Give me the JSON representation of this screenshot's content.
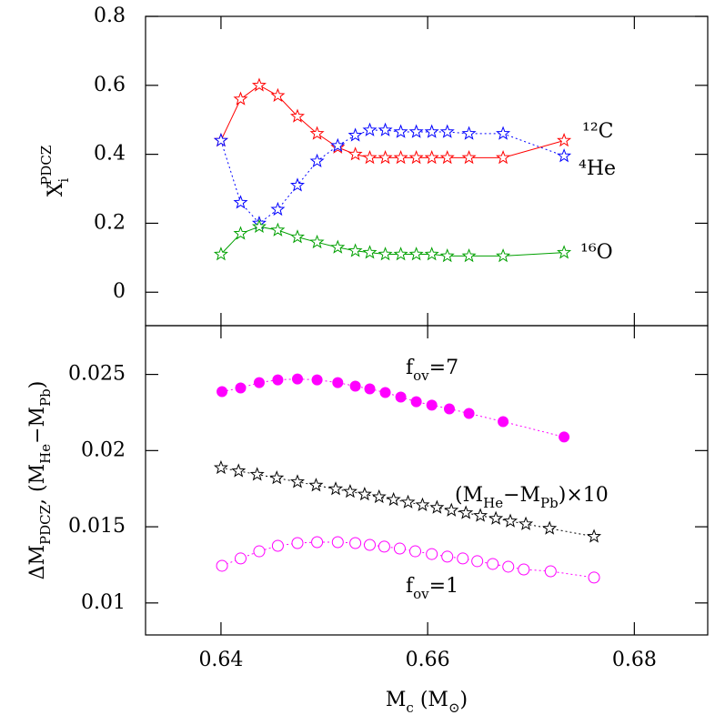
{
  "chart_data": [
    {
      "type": "line",
      "ylabel": [
        {
          "text": "X"
        },
        {
          "sub": "i"
        },
        {
          "sup": "PDCZ"
        }
      ],
      "xlim": [
        0.6327,
        0.6871
      ],
      "ylim": [
        -0.097,
        0.8
      ],
      "yticks": [
        0,
        0.2,
        0.4,
        0.6,
        0.8
      ],
      "series": [
        {
          "name": "¹²C",
          "color": "#ff0000",
          "marker": "star",
          "dash": false,
          "x": [
            0.64,
            0.6419,
            0.6437,
            0.6455,
            0.6474,
            0.6493,
            0.6513,
            0.653,
            0.6544,
            0.6559,
            0.6574,
            0.6589,
            0.6604,
            0.6619,
            0.664,
            0.6673,
            0.6732
          ],
          "values": [
            0.44,
            0.56,
            0.6,
            0.57,
            0.51,
            0.46,
            0.42,
            0.4,
            0.39,
            0.39,
            0.39,
            0.39,
            0.39,
            0.39,
            0.39,
            0.39,
            0.44
          ]
        },
        {
          "name": "⁴He",
          "color": "#0000ff",
          "marker": "star",
          "dash": true,
          "x": [
            0.64,
            0.6419,
            0.6437,
            0.6455,
            0.6474,
            0.6493,
            0.6513,
            0.653,
            0.6544,
            0.6559,
            0.6574,
            0.6589,
            0.6604,
            0.6619,
            0.664,
            0.6673,
            0.6732
          ],
          "values": [
            0.44,
            0.26,
            0.2,
            0.24,
            0.31,
            0.38,
            0.425,
            0.455,
            0.47,
            0.47,
            0.465,
            0.465,
            0.465,
            0.465,
            0.46,
            0.46,
            0.395
          ]
        },
        {
          "name": "¹⁶O",
          "color": "#00a000",
          "marker": "star",
          "dash": false,
          "x": [
            0.64,
            0.6419,
            0.6437,
            0.6455,
            0.6474,
            0.6493,
            0.6513,
            0.653,
            0.6544,
            0.6559,
            0.6574,
            0.6589,
            0.6604,
            0.6619,
            0.664,
            0.6673,
            0.6732
          ],
          "values": [
            0.11,
            0.17,
            0.19,
            0.18,
            0.16,
            0.145,
            0.13,
            0.12,
            0.115,
            0.11,
            0.11,
            0.11,
            0.11,
            0.105,
            0.105,
            0.105,
            0.115
          ]
        }
      ]
    },
    {
      "type": "line",
      "ylabel": [
        {
          "text": "ΔM"
        },
        {
          "sub": "PDCZ"
        },
        {
          "text": ",  (M"
        },
        {
          "sub": "He"
        },
        {
          "text": "−M"
        },
        {
          "sub": "Pb"
        },
        {
          "text": ")"
        }
      ],
      "xlabel": [
        {
          "text": "M"
        },
        {
          "sub": "c"
        },
        {
          "text": "  (M"
        },
        {
          "sub": "⊙"
        },
        {
          "text": ")"
        }
      ],
      "xlim": [
        0.6327,
        0.6871
      ],
      "ylim": [
        0.0079,
        0.0282
      ],
      "xticks": [
        0.64,
        0.66,
        0.68
      ],
      "yticks": [
        0.01,
        0.015,
        0.02,
        0.025
      ],
      "series": [
        {
          "name": [
            {
              "text": "f"
            },
            {
              "sub": "ov"
            },
            {
              "text": "=7"
            }
          ],
          "color": "#ff00ff",
          "marker": "circle-filled",
          "dash": true,
          "x": [
            0.6401,
            0.6419,
            0.6437,
            0.6455,
            0.6474,
            0.6493,
            0.6513,
            0.653,
            0.6544,
            0.6559,
            0.6574,
            0.6589,
            0.6604,
            0.6621,
            0.664,
            0.6673,
            0.6732
          ],
          "values": [
            0.02387,
            0.02411,
            0.02446,
            0.02464,
            0.0247,
            0.02464,
            0.02446,
            0.02423,
            0.02405,
            0.02381,
            0.02351,
            0.02321,
            0.02298,
            0.02274,
            0.02244,
            0.0219,
            0.02089
          ]
        },
        {
          "name": [
            {
              "text": "(M"
            },
            {
              "sub": "He"
            },
            {
              "text": "−M"
            },
            {
              "sub": "Pb"
            },
            {
              "text": ")×10"
            }
          ],
          "color": "#000000",
          "marker": "star",
          "dash": true,
          "x": [
            0.64,
            0.6417,
            0.6435,
            0.6454,
            0.6474,
            0.6492,
            0.6511,
            0.6525,
            0.6539,
            0.6553,
            0.6567,
            0.6581,
            0.6595,
            0.6609,
            0.6623,
            0.6637,
            0.6651,
            0.6666,
            0.668,
            0.6695,
            0.6718,
            0.6761
          ],
          "values": [
            0.01887,
            0.01866,
            0.01843,
            0.0182,
            0.01795,
            0.01772,
            0.01748,
            0.01731,
            0.01713,
            0.01696,
            0.01678,
            0.01661,
            0.01643,
            0.01626,
            0.01608,
            0.01591,
            0.01573,
            0.01554,
            0.01537,
            0.01518,
            0.01489,
            0.01436
          ]
        },
        {
          "name": [
            {
              "text": "f"
            },
            {
              "sub": "ov"
            },
            {
              "text": "=1"
            }
          ],
          "color": "#ff00ff",
          "marker": "circle-open",
          "dash": true,
          "x": [
            0.6401,
            0.6419,
            0.6437,
            0.6455,
            0.6474,
            0.6493,
            0.6513,
            0.653,
            0.6544,
            0.6558,
            0.6573,
            0.6588,
            0.6604,
            0.6619,
            0.6634,
            0.6648,
            0.6663,
            0.6678,
            0.6693,
            0.6719,
            0.6761
          ],
          "values": [
            0.01244,
            0.01292,
            0.01339,
            0.01375,
            0.01393,
            0.01399,
            0.01399,
            0.01393,
            0.01381,
            0.0137,
            0.01357,
            0.01339,
            0.01321,
            0.01304,
            0.01292,
            0.01274,
            0.01256,
            0.01238,
            0.0122,
            0.01208,
            0.01167
          ]
        }
      ]
    }
  ]
}
